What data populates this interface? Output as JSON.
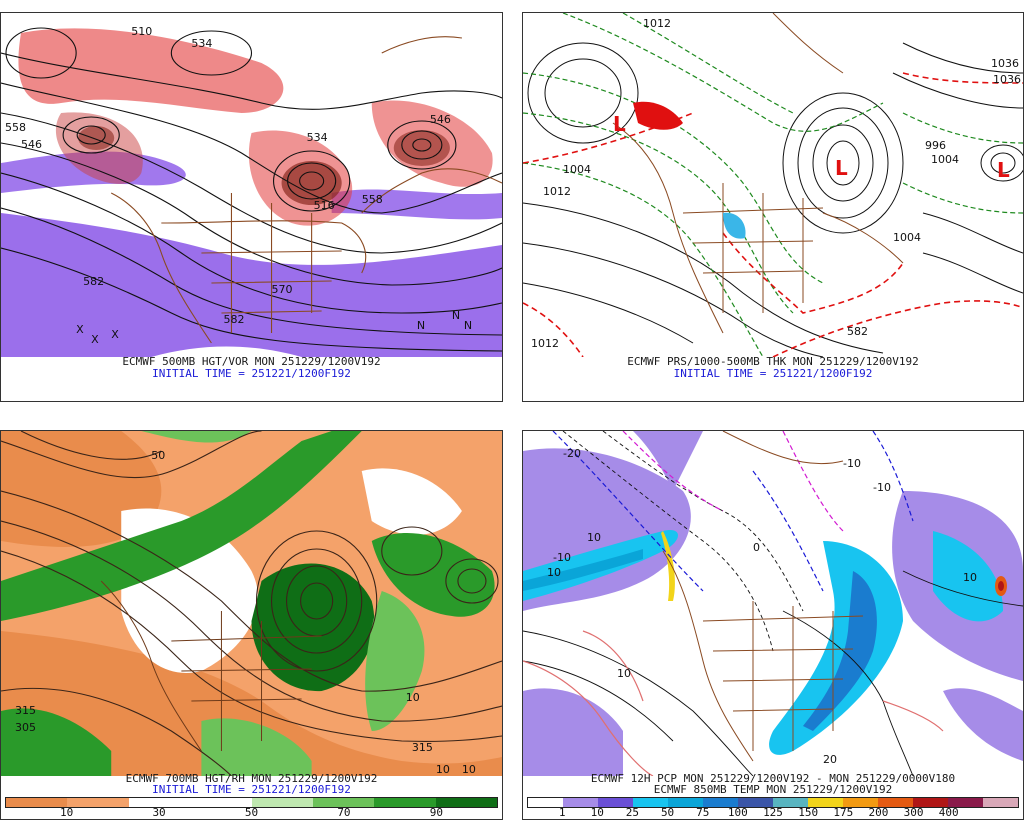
{
  "panels": [
    {
      "id": "p1",
      "caption": "ECMWF 500MB HGT/VOR MON 251229/1200V192",
      "initial_time": "INITIAL TIME = 251221/1200F192",
      "contour_labels": [
        "510",
        "558",
        "546",
        "534",
        "516",
        "546",
        "558",
        "582",
        "570",
        "582",
        "534"
      ],
      "markers": [
        "X",
        "X",
        "X",
        "N",
        "N",
        "N"
      ],
      "colors": {
        "vorticity_positive": "#e23a3a",
        "vorticity_negative": "#8a56e8"
      }
    },
    {
      "id": "p2",
      "caption": "ECMWF PRS/1000-500MB THK MON 251229/1200V192",
      "initial_time": "INITIAL TIME = 251221/1200F192",
      "contour_labels": [
        "1012",
        "1036",
        "996",
        "1004",
        "1012",
        "1004",
        "1012",
        "1036",
        "1004",
        "582"
      ],
      "markers": [
        "L",
        "L",
        "L"
      ],
      "colors": {
        "isobars": "#111111",
        "thickness_cold": "#1f8a1f",
        "thickness_warm": "#e01010"
      }
    },
    {
      "id": "p3",
      "caption": "ECMWF 700MB HGT/RH MON 251229/1200V192",
      "initial_time": "INITIAL TIME = 251221/1200F192",
      "contour_labels": [
        "315",
        "315",
        "10",
        "10",
        "305",
        "50",
        "10"
      ],
      "colorbar": {
        "colors": [
          "#e98c4c",
          "#f4a26a",
          "#ffffff",
          "#ffffff",
          "#bfe8b0",
          "#6cc25a",
          "#2a9a2a",
          "#0f6e16"
        ],
        "ticks": [
          "10",
          "30",
          "50",
          "70",
          "90"
        ]
      }
    },
    {
      "id": "p4",
      "caption": "ECMWF 12H PCP MON 251229/1200V192 - MON 251229/0000V180",
      "initial_time": "ECMWF 850MB TEMP MON 251229/1200V192",
      "contour_labels": [
        "-20",
        "-10",
        "10",
        "10",
        "-10",
        "10",
        "20",
        "10",
        "0",
        "-10"
      ],
      "colorbar": {
        "colors": [
          "#ffffff",
          "#a68ce8",
          "#6a4fd6",
          "#18c4f0",
          "#0aa5d8",
          "#1a7ccf",
          "#3a55a8",
          "#58b4c0",
          "#f2d41a",
          "#f29a12",
          "#e45a12",
          "#b01616",
          "#8a1a4a",
          "#d9a8b8"
        ],
        "ticks": [
          "1",
          "10",
          "25",
          "50",
          "75",
          "100",
          "125",
          "150",
          "175",
          "200",
          "300",
          "400"
        ]
      }
    }
  ]
}
